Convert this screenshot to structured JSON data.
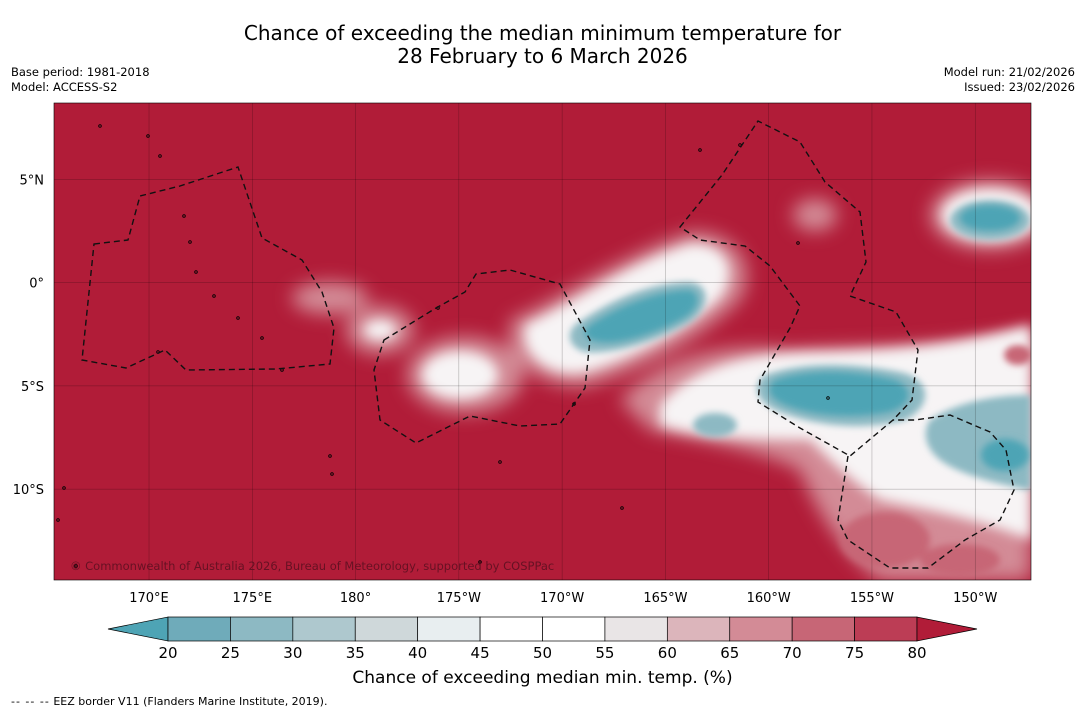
{
  "title": {
    "line1": "Chance of exceeding the median minimum temperature for",
    "line2": "28 February to 6 March 2026"
  },
  "meta": {
    "base_period": "Base period: 1981-2018",
    "model": "Model: ACCESS-S2",
    "model_run": "Model run: 21/02/2026",
    "issued": "Issued: 23/02/2026"
  },
  "map": {
    "lon_range": [
      165.4,
      212.7
    ],
    "lat_range": [
      -14.4,
      8.7
    ],
    "lon_ticks": [
      {
        "lon": 170,
        "label": "170°E"
      },
      {
        "lon": 175,
        "label": "175°E"
      },
      {
        "lon": 180,
        "label": "180°"
      },
      {
        "lon": 185,
        "label": "175°W"
      },
      {
        "lon": 190,
        "label": "170°W"
      },
      {
        "lon": 195,
        "label": "165°W"
      },
      {
        "lon": 200,
        "label": "160°W"
      },
      {
        "lon": 205,
        "label": "155°W"
      },
      {
        "lon": 210,
        "label": "150°W"
      }
    ],
    "lat_ticks": [
      {
        "lat": 5,
        "label": "5°N"
      },
      {
        "lat": 0,
        "label": "0°"
      },
      {
        "lat": -5,
        "label": "5°S"
      },
      {
        "lat": -10,
        "label": "10°S"
      }
    ],
    "background_color": "#b11c38",
    "copyright": "© Commonwealth of Australia 2026, Bureau of Meteorology, supported by COSPPac"
  },
  "colorbar": {
    "ticks": [
      "20",
      "25",
      "30",
      "35",
      "40",
      "45",
      "50",
      "55",
      "60",
      "65",
      "70",
      "75",
      "80"
    ],
    "colors": [
      "#4ea4b5",
      "#6fabba",
      "#8db9c3",
      "#aec8ce",
      "#cfd8da",
      "#e8eef0",
      "#ffffff",
      "#ffffff",
      "#e9e5e6",
      "#dcb5bb",
      "#d38b96",
      "#c76676",
      "#bc3d55",
      "#b11c38"
    ],
    "label": "Chance of exceeding median min. temp. (%)"
  },
  "footnote": {
    "dashes": "--  --  --",
    "text": "EEZ border V11 (Flanders Marine Institute, 2019)."
  }
}
